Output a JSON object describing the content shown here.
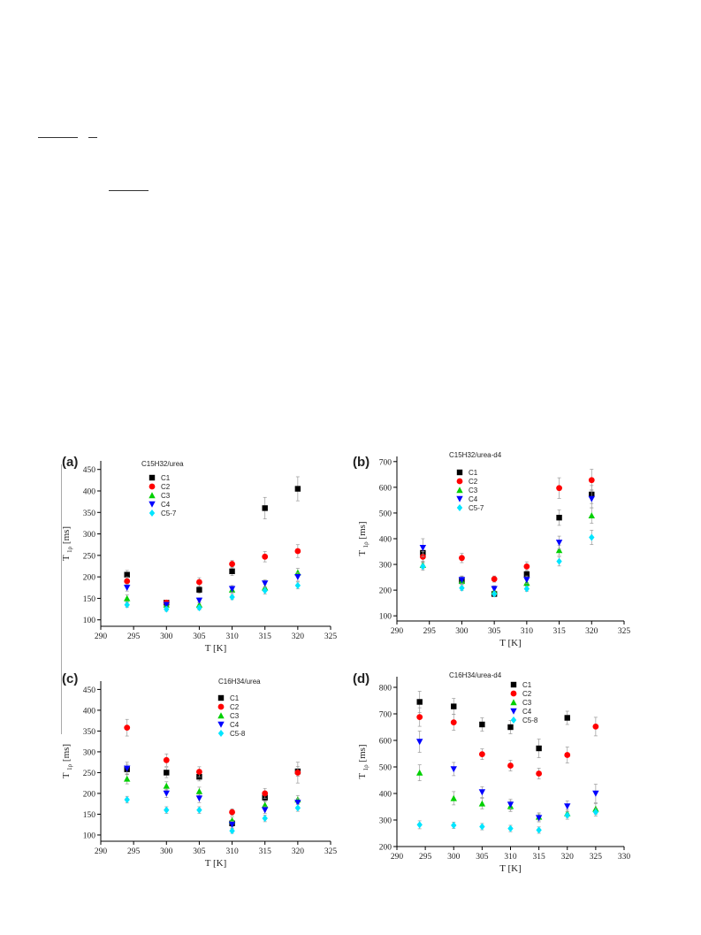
{
  "chart_data": [
    {
      "type": "scatter",
      "panel_label": "(a)",
      "title": "C15H32/urea",
      "xlabel": "T [K]",
      "ylabel": "T1ρ [ms]",
      "ylabel_main": "T",
      "ylabel_sub": "1ρ",
      "ylabel_unit": "[ms]",
      "xlim": [
        290,
        325
      ],
      "ylim": [
        85,
        470
      ],
      "xticks": [
        290,
        295,
        300,
        305,
        310,
        315,
        320,
        325
      ],
      "yticks": [
        100,
        150,
        200,
        250,
        300,
        350,
        400,
        450
      ],
      "legend_position": "upper-left",
      "series": [
        {
          "name": "C1",
          "color": "#000000",
          "marker": "square",
          "x": [
            294,
            300,
            305,
            310,
            315,
            320
          ],
          "y": [
            205,
            140,
            170,
            213,
            360,
            405
          ],
          "err": [
            10,
            6,
            8,
            10,
            25,
            28
          ]
        },
        {
          "name": "C2",
          "color": "#ff0000",
          "marker": "circle",
          "x": [
            294,
            300,
            305,
            310,
            315,
            320
          ],
          "y": [
            190,
            140,
            188,
            230,
            247,
            260
          ],
          "err": [
            10,
            6,
            10,
            8,
            12,
            15
          ]
        },
        {
          "name": "C3",
          "color": "#00d000",
          "marker": "triangle-up",
          "x": [
            294,
            300,
            305,
            310,
            315,
            320
          ],
          "y": [
            150,
            135,
            135,
            170,
            175,
            210
          ],
          "err": [
            8,
            6,
            6,
            8,
            8,
            10
          ]
        },
        {
          "name": "C4",
          "color": "#0000ff",
          "marker": "triangle-down",
          "x": [
            294,
            300,
            305,
            310,
            315,
            320
          ],
          "y": [
            175,
            135,
            145,
            172,
            185,
            200
          ],
          "err": [
            8,
            6,
            6,
            8,
            8,
            10
          ]
        },
        {
          "name": "C5-7",
          "color": "#00e5ff",
          "marker": "diamond",
          "x": [
            294,
            300,
            305,
            310,
            315,
            320
          ],
          "y": [
            135,
            125,
            128,
            153,
            168,
            180
          ],
          "err": [
            6,
            5,
            5,
            6,
            8,
            8
          ]
        }
      ]
    },
    {
      "type": "scatter",
      "panel_label": "(b)",
      "title": "C15H32/urea-d4",
      "xlabel": "T [K]",
      "ylabel": "T1ρ [ms]",
      "ylabel_main": "T",
      "ylabel_sub": "1ρ",
      "ylabel_unit": "[ms]",
      "xlim": [
        290,
        325
      ],
      "ylim": [
        80,
        720
      ],
      "xticks": [
        290,
        295,
        300,
        305,
        310,
        315,
        320,
        325
      ],
      "yticks": [
        100,
        200,
        300,
        400,
        500,
        600,
        700
      ],
      "legend_position": "upper-left",
      "series": [
        {
          "name": "C1",
          "color": "#000000",
          "marker": "square",
          "x": [
            294,
            300,
            305,
            310,
            315,
            320
          ],
          "y": [
            345,
            238,
            185,
            262,
            482,
            572
          ],
          "err": [
            20,
            15,
            10,
            15,
            30,
            35
          ]
        },
        {
          "name": "C2",
          "color": "#ff0000",
          "marker": "circle",
          "x": [
            294,
            300,
            305,
            310,
            315,
            320
          ],
          "y": [
            330,
            325,
            243,
            292,
            597,
            628
          ],
          "err": [
            20,
            18,
            12,
            18,
            40,
            42
          ]
        },
        {
          "name": "C3",
          "color": "#00d000",
          "marker": "triangle-up",
          "x": [
            294,
            300,
            305,
            310,
            315,
            320
          ],
          "y": [
            298,
            235,
            195,
            228,
            355,
            490
          ],
          "err": [
            15,
            12,
            10,
            12,
            20,
            30
          ]
        },
        {
          "name": "C4",
          "color": "#0000ff",
          "marker": "triangle-down",
          "x": [
            294,
            300,
            305,
            310,
            315,
            320
          ],
          "y": [
            365,
            240,
            205,
            240,
            385,
            555
          ],
          "err": [
            35,
            15,
            12,
            15,
            25,
            35
          ]
        },
        {
          "name": "C5-7",
          "color": "#00e5ff",
          "marker": "diamond",
          "x": [
            294,
            300,
            305,
            310,
            315,
            320
          ],
          "y": [
            292,
            208,
            185,
            205,
            312,
            405
          ],
          "err": [
            15,
            10,
            8,
            10,
            18,
            28
          ]
        }
      ]
    },
    {
      "type": "scatter",
      "panel_label": "(c)",
      "title": "C16H34/urea",
      "xlabel": "T [K]",
      "ylabel": "T1ρ [ms]",
      "ylabel_main": "T",
      "ylabel_sub": "1ρ",
      "ylabel_unit": "[ms]",
      "xlim": [
        290,
        325
      ],
      "ylim": [
        85,
        470
      ],
      "xticks": [
        290,
        295,
        300,
        305,
        310,
        315,
        320,
        325
      ],
      "yticks": [
        100,
        150,
        200,
        250,
        300,
        350,
        400,
        450
      ],
      "legend_position": "upper-center",
      "series": [
        {
          "name": "C1",
          "color": "#000000",
          "marker": "square",
          "x": [
            294,
            300,
            305,
            310,
            315,
            320
          ],
          "y": [
            258,
            250,
            240,
            128,
            190,
            253
          ],
          "err": [
            12,
            12,
            10,
            8,
            10,
            12
          ]
        },
        {
          "name": "C2",
          "color": "#ff0000",
          "marker": "circle",
          "x": [
            294,
            300,
            305,
            310,
            315,
            320
          ],
          "y": [
            358,
            280,
            252,
            155,
            200,
            250
          ],
          "err": [
            20,
            15,
            12,
            8,
            12,
            25
          ]
        },
        {
          "name": "C3",
          "color": "#00d000",
          "marker": "triangle-up",
          "x": [
            294,
            300,
            305,
            310,
            315,
            320
          ],
          "y": [
            235,
            218,
            205,
            135,
            172,
            185
          ],
          "err": [
            12,
            10,
            10,
            8,
            10,
            10
          ]
        },
        {
          "name": "C4",
          "color": "#0000ff",
          "marker": "triangle-down",
          "x": [
            294,
            300,
            305,
            310,
            315,
            320
          ],
          "y": [
            260,
            200,
            188,
            125,
            160,
            178
          ],
          "err": [
            15,
            10,
            10,
            8,
            8,
            10
          ]
        },
        {
          "name": "C5-8",
          "color": "#00e5ff",
          "marker": "diamond",
          "x": [
            294,
            300,
            305,
            310,
            315,
            320
          ],
          "y": [
            185,
            160,
            160,
            110,
            140,
            165
          ],
          "err": [
            8,
            8,
            8,
            6,
            8,
            8
          ]
        }
      ]
    },
    {
      "type": "scatter",
      "panel_label": "(d)",
      "title": "C16H34/urea-d4",
      "xlabel": "T [K]",
      "ylabel": "T1ρ [ms]",
      "ylabel_main": "T",
      "ylabel_sub": "1ρ",
      "ylabel_unit": "[ms]",
      "xlim": [
        290,
        330
      ],
      "ylim": [
        200,
        840
      ],
      "xticks": [
        290,
        295,
        300,
        305,
        310,
        315,
        320,
        325,
        330
      ],
      "yticks": [
        200,
        300,
        400,
        500,
        600,
        700,
        800
      ],
      "legend_position": "upper-center",
      "series": [
        {
          "name": "C1",
          "color": "#000000",
          "marker": "square",
          "x": [
            294,
            300,
            305,
            310,
            315,
            320
          ],
          "y": [
            745,
            728,
            660,
            650,
            570,
            685
          ],
          "err": [
            40,
            30,
            25,
            25,
            35,
            25
          ]
        },
        {
          "name": "C2",
          "color": "#ff0000",
          "marker": "circle",
          "x": [
            294,
            300,
            305,
            310,
            315,
            320,
            325
          ],
          "y": [
            688,
            668,
            548,
            505,
            475,
            545,
            652
          ],
          "err": [
            35,
            30,
            20,
            20,
            20,
            30,
            35
          ]
        },
        {
          "name": "C3",
          "color": "#00d000",
          "marker": "triangle-up",
          "x": [
            294,
            300,
            305,
            310,
            315,
            320,
            325
          ],
          "y": [
            478,
            382,
            362,
            352,
            312,
            325,
            342
          ],
          "err": [
            30,
            25,
            20,
            20,
            15,
            15,
            20
          ]
        },
        {
          "name": "C4",
          "color": "#0000ff",
          "marker": "triangle-down",
          "x": [
            294,
            300,
            305,
            310,
            315,
            320,
            325
          ],
          "y": [
            595,
            492,
            405,
            358,
            308,
            352,
            400
          ],
          "err": [
            40,
            25,
            20,
            20,
            15,
            20,
            35
          ]
        },
        {
          "name": "C5-8",
          "color": "#00e5ff",
          "marker": "diamond",
          "x": [
            294,
            300,
            305,
            310,
            315,
            320,
            325
          ],
          "y": [
            282,
            280,
            275,
            268,
            262,
            318,
            330
          ],
          "err": [
            15,
            12,
            12,
            12,
            12,
            15,
            15
          ]
        }
      ]
    }
  ]
}
